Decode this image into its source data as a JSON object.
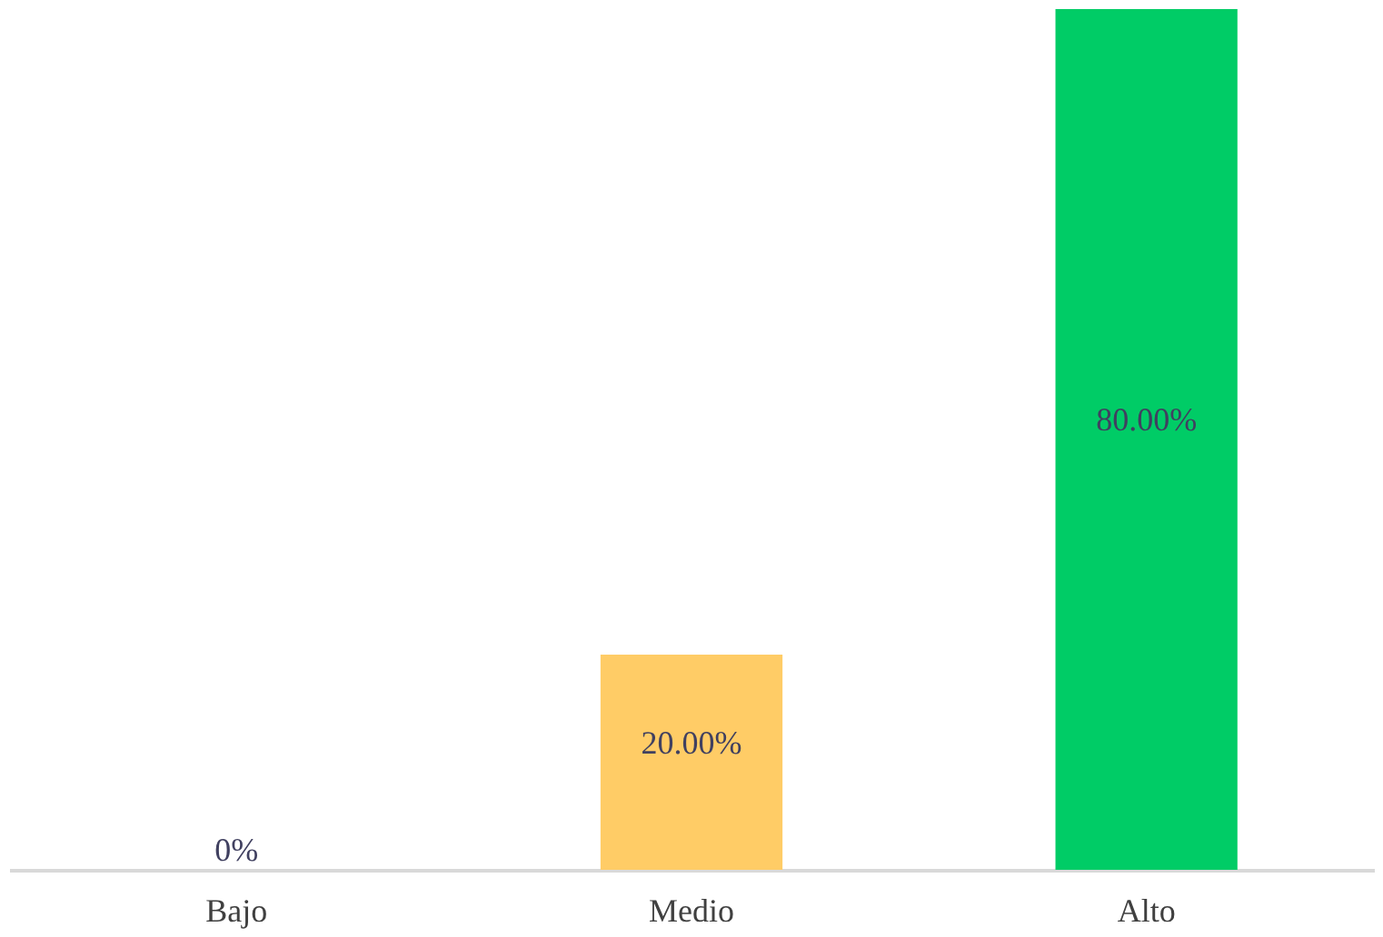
{
  "chart_data": {
    "type": "bar",
    "categories": [
      "Bajo",
      "Medio",
      "Alto"
    ],
    "values": [
      0,
      20,
      80
    ],
    "colors": [
      "#7b2020",
      "#ffcc66",
      "#00cc66"
    ],
    "value_labels": [
      "0%",
      "20.00%",
      "80.00%"
    ]
  }
}
